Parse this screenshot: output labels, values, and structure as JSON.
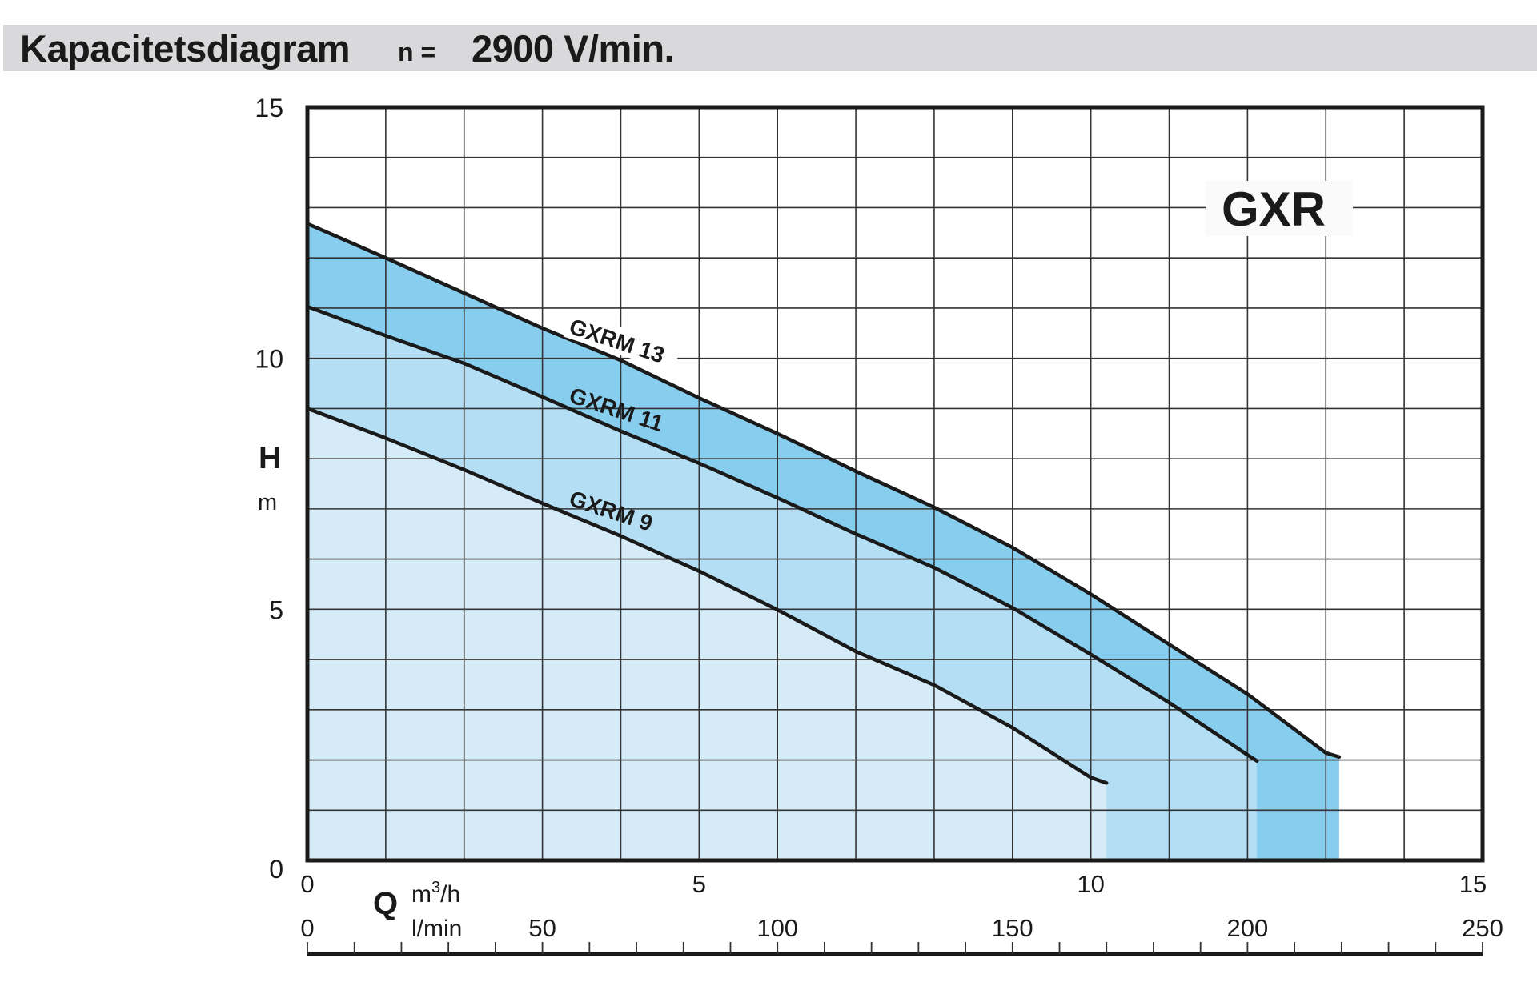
{
  "header": {
    "title": "Kapacitetsdiagram",
    "speed_prefix": "n =",
    "speed_value": "2900 V/min."
  },
  "chart_data": {
    "type": "line",
    "title": "Kapacitetsdiagram n = 2900 V/min.",
    "model": "GXR",
    "ylabel": "H",
    "yunit": "m",
    "xlabel": "Q",
    "xunit_primary": "m3/h",
    "xunit_primary_base": "m",
    "xunit_primary_sup": "3",
    "xunit_primary_tail": "/h",
    "xunit_secondary": "l/min",
    "xlim": [
      0,
      15
    ],
    "ylim": [
      0,
      15
    ],
    "xlim_secondary": [
      0,
      250
    ],
    "y_ticks": [
      "0",
      "5",
      "10",
      "15"
    ],
    "y_tick_values": [
      0,
      5,
      10,
      15
    ],
    "x_ticks": [
      "0",
      "5",
      "10",
      "15"
    ],
    "x_tick_values": [
      0,
      5,
      10,
      15
    ],
    "x2_ticks": [
      "0",
      "50",
      "100",
      "150",
      "200",
      "250"
    ],
    "x2_tick_values": [
      0,
      50,
      100,
      150,
      200,
      250
    ],
    "grid": {
      "x_step": 1,
      "y_step": 1,
      "x2_minor_step": 10
    },
    "fill_colors": [
      "#d6ebf8",
      "#b3def4",
      "#86cdee"
    ],
    "line_color": "#1a1a1a",
    "series": [
      {
        "name": "GXRM 9",
        "x": [
          0,
          1,
          2,
          3,
          4,
          5,
          6,
          7,
          8,
          9,
          10,
          10.2
        ],
        "y": [
          9.0,
          8.41,
          7.78,
          7.11,
          6.46,
          5.76,
          4.99,
          4.16,
          3.49,
          2.64,
          1.65,
          1.54
        ]
      },
      {
        "name": "GXRM 11",
        "x": [
          0,
          1,
          2,
          3,
          4,
          5,
          6,
          7,
          8,
          9,
          10,
          11,
          12,
          12.12
        ],
        "y": [
          11.03,
          10.45,
          9.9,
          9.23,
          8.55,
          7.91,
          7.22,
          6.5,
          5.83,
          5.03,
          4.1,
          3.14,
          2.1,
          1.98
        ]
      },
      {
        "name": "GXRM 13",
        "x": [
          0,
          1,
          2,
          3,
          4,
          5,
          6,
          7,
          8,
          9,
          10,
          11,
          12,
          13,
          13.17
        ],
        "y": [
          12.68,
          12.0,
          11.3,
          10.6,
          9.96,
          9.21,
          8.5,
          7.75,
          7.03,
          6.23,
          5.3,
          4.3,
          3.31,
          2.14,
          2.06
        ]
      }
    ]
  }
}
